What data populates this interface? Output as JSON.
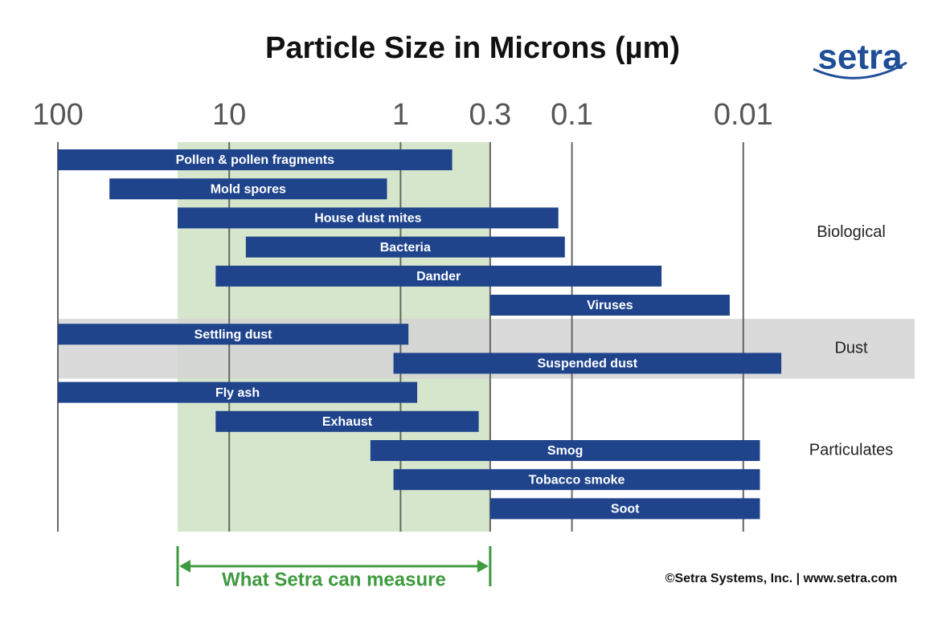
{
  "chart_data": {
    "type": "range_bar",
    "title": "Particle Size in Microns (µm)",
    "logo": "setra",
    "footer": "©Setra Systems, Inc.  |  www.setra.com",
    "xscale": "log",
    "reversed": true,
    "xlim": [
      100,
      0.001
    ],
    "xticks": [
      100,
      10,
      1,
      0.3,
      0.1,
      0.01
    ],
    "grid": true,
    "color": "#1f448c",
    "highlight_color": "#d3d3d3",
    "groups": [
      {
        "name": "Biological",
        "highlight": false,
        "categories": [
          "Pollen & pollen fragments",
          "Mold spores",
          "House dust mites",
          "Bacteria",
          "Dander",
          "Viruses"
        ],
        "values": [
          [
            100,
            0.5
          ],
          [
            50,
            1.2
          ],
          [
            20,
            0.12
          ],
          [
            8,
            0.11
          ],
          [
            12,
            0.03
          ],
          [
            0.3,
            0.012
          ]
        ]
      },
      {
        "name": "Dust",
        "highlight": true,
        "categories": [
          "Settling dust",
          "Suspended dust"
        ],
        "values": [
          [
            100,
            0.9
          ],
          [
            1.1,
            0.006
          ]
        ]
      },
      {
        "name": "Particulates",
        "highlight": false,
        "categories": [
          "Fly ash",
          "Exhaust",
          "Smog",
          "Tobacco smoke",
          "Soot"
        ],
        "values": [
          [
            100,
            0.8
          ],
          [
            12,
            0.35
          ],
          [
            1.5,
            0.008
          ],
          [
            1.1,
            0.008
          ],
          [
            0.3,
            0.008
          ]
        ]
      }
    ],
    "measure_range": {
      "label": "What Setra can measure",
      "values": [
        20,
        0.3
      ],
      "color": "#3f9a3f",
      "fill": "#d5e6cc"
    }
  }
}
